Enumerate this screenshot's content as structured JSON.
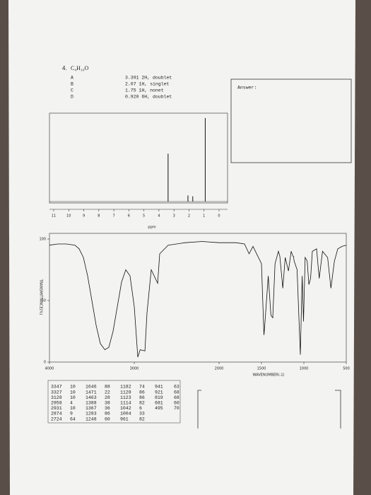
{
  "header": {
    "number": "4.",
    "formula": "C₄H₁₀O"
  },
  "nmr_peaks": [
    {
      "label": "A",
      "description": "3.391 2H, doublet"
    },
    {
      "label": "B",
      "description": "2.07 1H, singlet"
    },
    {
      "label": "C",
      "description": "1.75 1H, nonet"
    },
    {
      "label": "D",
      "description": "0.920 6H, doublet"
    }
  ],
  "answer_label": "Answer:",
  "nmr_spectrum": {
    "type": "nmr",
    "x_label": "ppm",
    "xlim": [
      11,
      0
    ],
    "xticks": [
      11,
      10,
      9,
      8,
      7,
      6,
      5,
      4,
      3,
      2,
      1,
      0
    ],
    "ylim": [
      0,
      100
    ],
    "peaks": {
      "x": [
        3.391,
        2.07,
        1.75,
        0.92
      ],
      "heights": [
        55,
        7,
        6,
        96
      ]
    }
  },
  "ir_spectrum": {
    "type": "line",
    "x_label": "WAVENUMBER(-1)",
    "y_label": "TRANSMITTANCE(%)",
    "xlim": [
      4000,
      500
    ],
    "xticks": [
      4000,
      3000,
      2000,
      1500,
      1000,
      500
    ],
    "ylim": [
      0,
      100
    ],
    "yticks": [
      0,
      50,
      100
    ],
    "x": [
      4000,
      3900,
      3800,
      3700,
      3650,
      3600,
      3550,
      3500,
      3450,
      3400,
      3347,
      3300,
      3250,
      3200,
      3150,
      3100,
      3050,
      3000,
      2958,
      2931,
      2874,
      2850,
      2800,
      2724,
      2700,
      2600,
      2400,
      2200,
      2000,
      1800,
      1700,
      1646,
      1600,
      1500,
      1471,
      1463,
      1420,
      1388,
      1367,
      1340,
      1300,
      1283,
      1248,
      1220,
      1182,
      1150,
      1128,
      1123,
      1114,
      1080,
      1042,
      1020,
      1004,
      985,
      961,
      941,
      921,
      900,
      850,
      819,
      780,
      720,
      681,
      640,
      600,
      550,
      500
    ],
    "values": [
      95,
      96,
      96,
      95,
      92,
      85,
      70,
      50,
      30,
      15,
      10,
      12,
      25,
      45,
      65,
      75,
      70,
      45,
      4,
      10,
      9,
      40,
      75,
      64,
      88,
      95,
      97,
      98,
      97,
      97,
      96,
      88,
      94,
      80,
      22,
      28,
      70,
      38,
      36,
      80,
      90,
      86,
      60,
      85,
      74,
      90,
      86,
      86,
      82,
      75,
      6,
      70,
      33,
      85,
      82,
      63,
      68,
      90,
      92,
      68,
      90,
      85,
      60,
      82,
      92,
      94,
      95
    ]
  },
  "ir_peaks": [
    [
      [
        3347,
        10
      ],
      [
        3327,
        10
      ],
      [
        3128,
        10
      ],
      [
        2958,
        4
      ],
      [
        2931,
        10
      ],
      [
        2874,
        9
      ],
      [
        2724,
        64
      ]
    ],
    [
      [
        1646,
        88
      ],
      [
        1471,
        22
      ],
      [
        1463,
        28
      ],
      [
        1388,
        38
      ],
      [
        1367,
        36
      ],
      [
        1283,
        86
      ],
      [
        1248,
        60
      ]
    ],
    [
      [
        1182,
        74
      ],
      [
        1128,
        86
      ],
      [
        1123,
        86
      ],
      [
        1114,
        82
      ],
      [
        1042,
        6
      ],
      [
        1004,
        33
      ],
      [
        961,
        82
      ]
    ],
    [
      [
        941,
        63
      ],
      [
        921,
        68
      ],
      [
        819,
        68
      ],
      [
        681,
        60
      ],
      [
        495,
        70
      ]
    ]
  ]
}
